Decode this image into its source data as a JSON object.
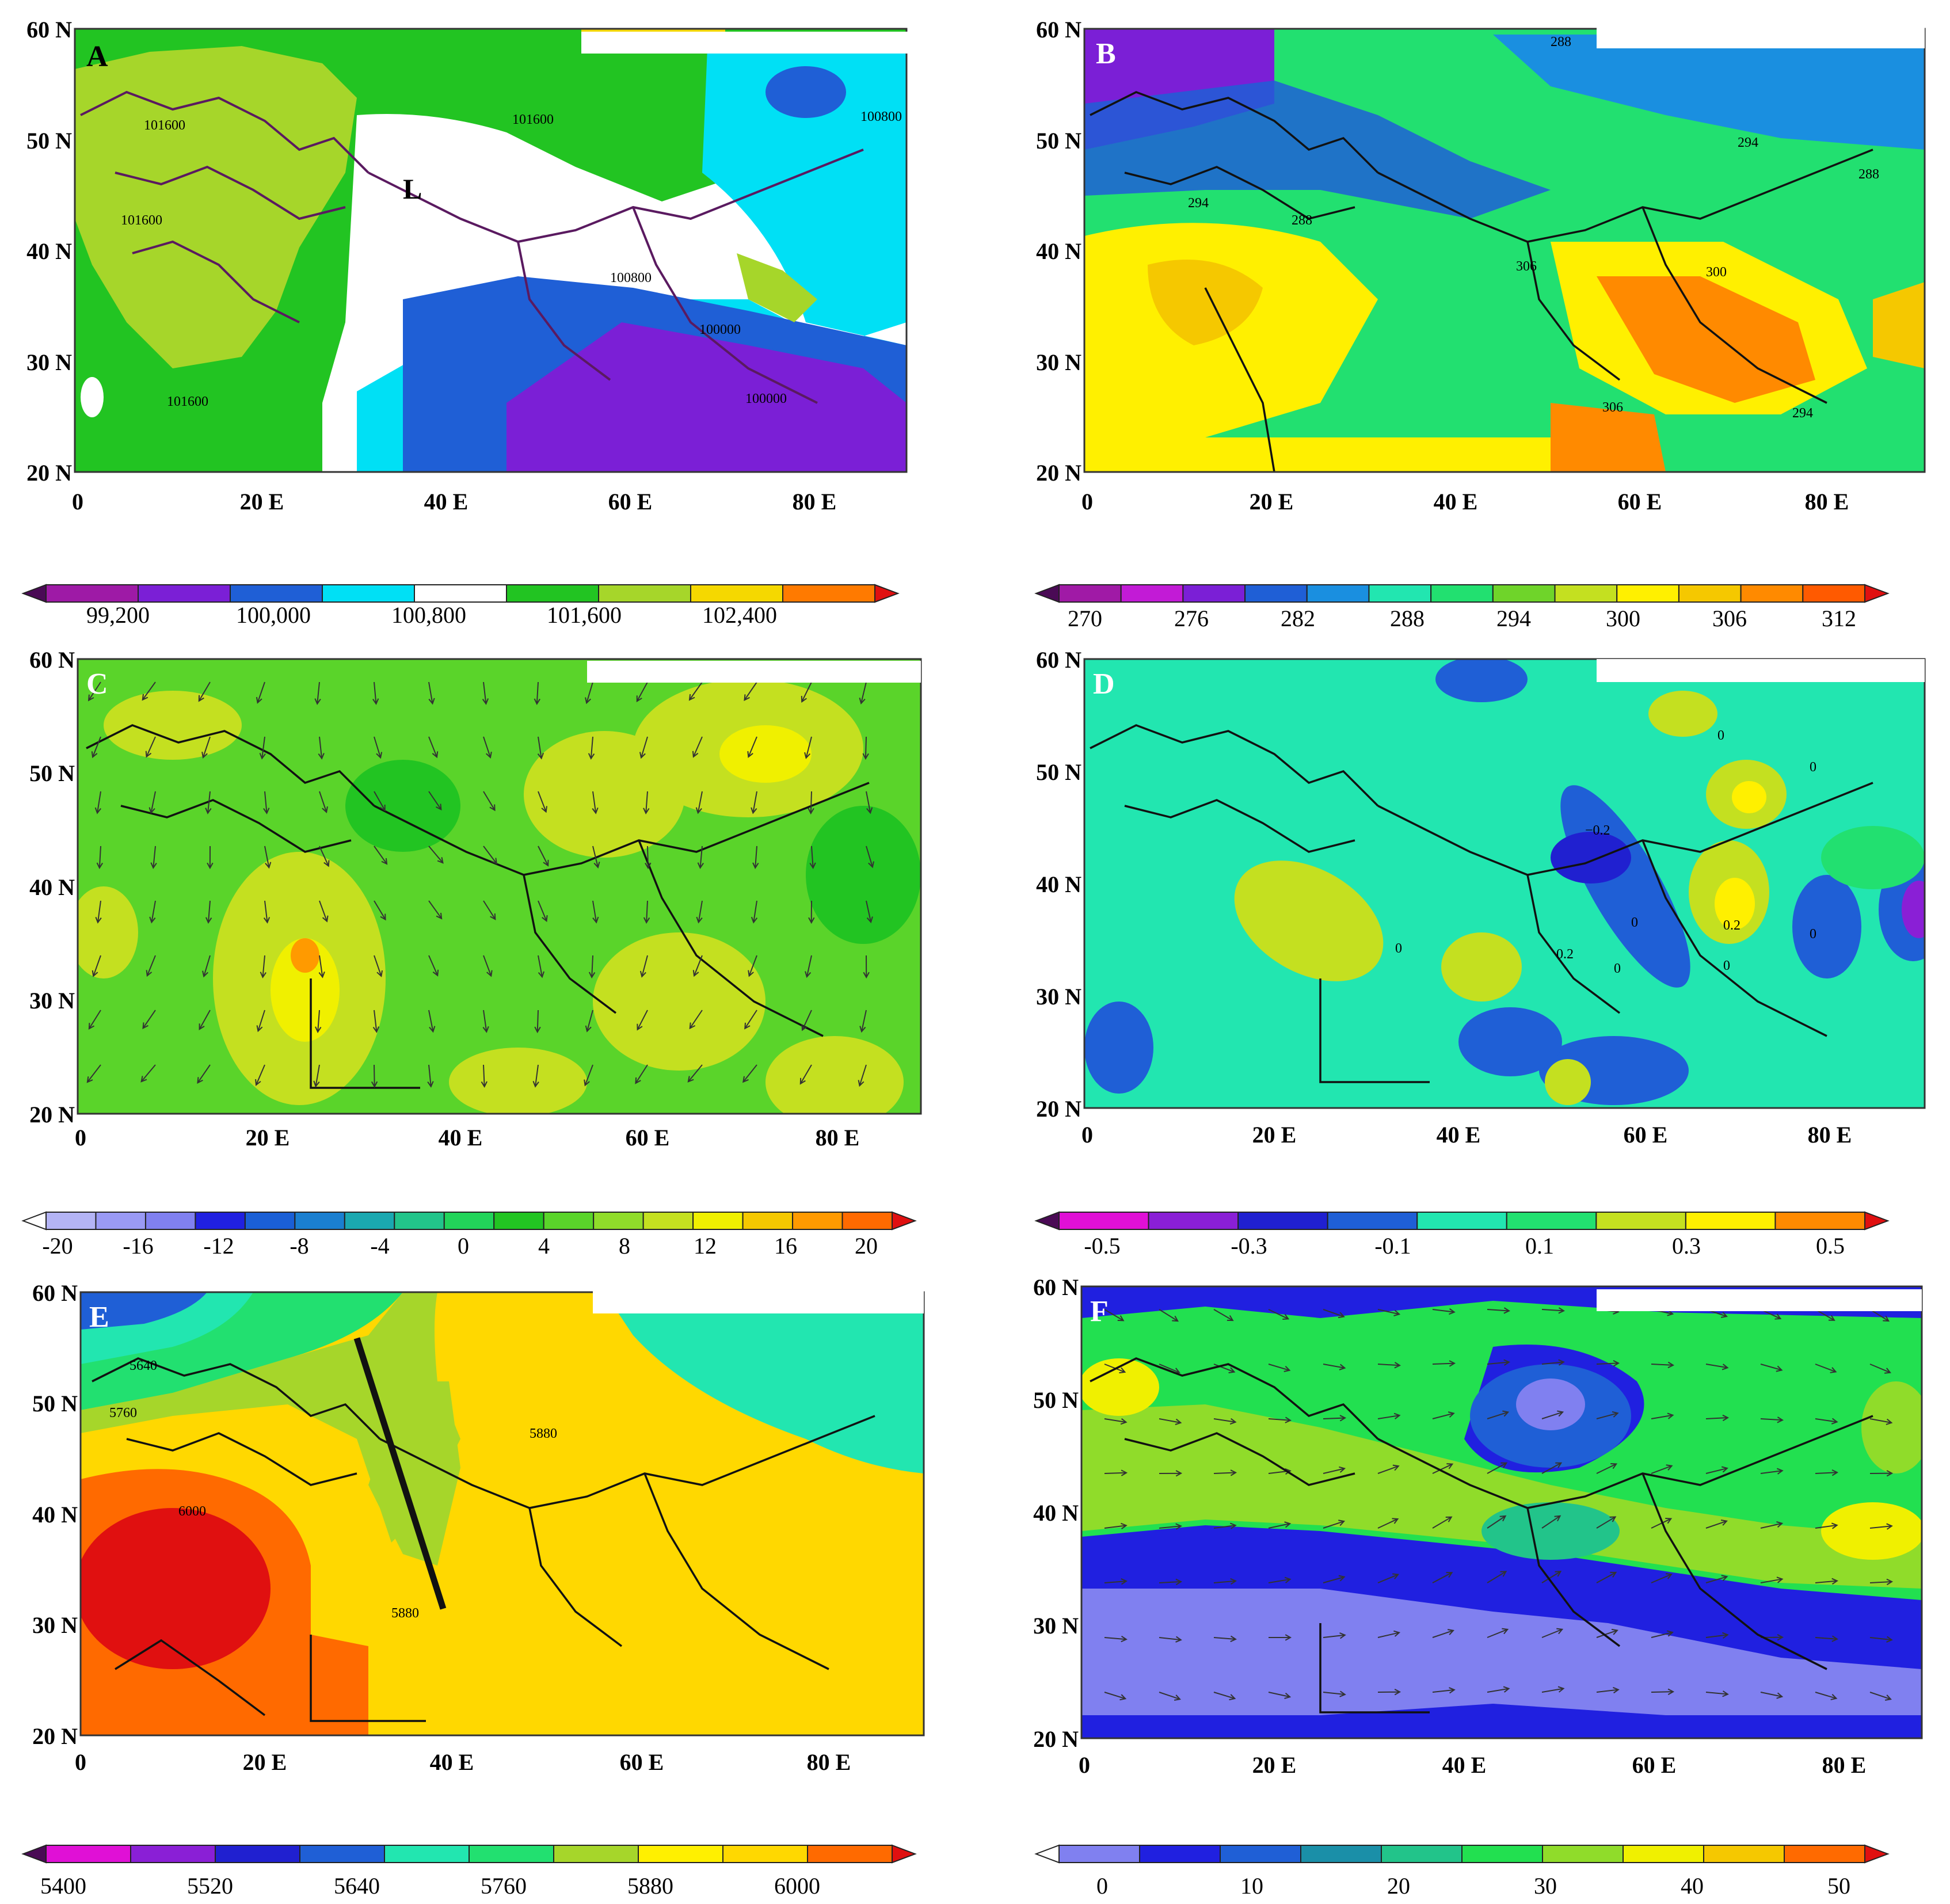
{
  "panels": [
    {
      "letter": "A",
      "lat_labels": [
        "60 N",
        "50 N",
        "40 N",
        "30 N",
        "20 N"
      ],
      "lon_labels": [
        "0",
        "20 E",
        "40 E",
        "60 E",
        "80 E"
      ],
      "contour_labels": [
        "101600",
        "101600",
        "101600",
        "101600",
        "100800",
        "100800",
        "100000",
        "100000"
      ],
      "low_marker": "L"
    },
    {
      "letter": "B",
      "lat_labels": [
        "60 N",
        "50 N",
        "40 N",
        "30 N",
        "20 N"
      ],
      "lon_labels": [
        "0",
        "20 E",
        "40 E",
        "60 E",
        "80 E"
      ],
      "contour_labels": [
        "288",
        "294",
        "294",
        "288",
        "294",
        "288",
        "306",
        "300",
        "306",
        "294"
      ]
    },
    {
      "letter": "C",
      "lat_labels": [
        "60 N",
        "50 N",
        "40 N",
        "30 N",
        "20 N"
      ],
      "lon_labels": [
        "0",
        "20 E",
        "40 E",
        "60 E",
        "80 E"
      ],
      "contour_labels": []
    },
    {
      "letter": "D",
      "lat_labels": [
        "60 N",
        "50 N",
        "40 N",
        "30 N",
        "20 N"
      ],
      "lon_labels": [
        "0",
        "20 E",
        "40 E",
        "60 E",
        "80 E"
      ],
      "contour_labels": [
        "0",
        "0",
        "−0.2",
        "0.2",
        "0",
        "0",
        "0",
        "0.2",
        "0",
        "0"
      ]
    },
    {
      "letter": "E",
      "lat_labels": [
        "60 N",
        "50 N",
        "40 N",
        "30 N",
        "20 N"
      ],
      "lon_labels": [
        "0",
        "20 E",
        "40 E",
        "60 E",
        "80 E"
      ],
      "contour_labels": [
        "5640",
        "5760",
        "6000",
        "5880",
        "5880"
      ]
    },
    {
      "letter": "F",
      "lat_labels": [
        "60 N",
        "50 N",
        "40 N",
        "30 N",
        "20 N"
      ],
      "lon_labels": [
        "0",
        "20 E",
        "40 E",
        "60 E",
        "80 E"
      ],
      "contour_labels": []
    }
  ],
  "colorbars": [
    {
      "id": "A",
      "labels": [
        "99,200",
        "100,000",
        "100,800",
        "101,600",
        "102,400"
      ],
      "colors": [
        "#4a0a55",
        "#9e1aa6",
        "#7b1fd6",
        "#1f5fd6",
        "#00e0f5",
        "#ffffff",
        "#22c422",
        "#a6d62a",
        "#f5d800",
        "#ff7a00",
        "#e01010"
      ]
    },
    {
      "id": "B",
      "labels": [
        "270",
        "276",
        "282",
        "288",
        "294",
        "300",
        "306",
        "312"
      ],
      "colors": [
        "#4a0a55",
        "#a01aa6",
        "#c21bd6",
        "#7b1fd6",
        "#1f5fd6",
        "#1a8fe0",
        "#22e6b0",
        "#22e070",
        "#6fd42a",
        "#c4e020",
        "#fff000",
        "#f5c800",
        "#ff8a00",
        "#ff5a00",
        "#e01010"
      ]
    },
    {
      "id": "C",
      "labels": [
        "-20",
        "-16",
        "-12",
        "-8",
        "-4",
        "0",
        "4",
        "8",
        "12",
        "16",
        "20"
      ],
      "colors": [
        "#ffffff",
        "#b4b4f5",
        "#9a9af5",
        "#8080f0",
        "#2020e0",
        "#1a5fd6",
        "#1a7fd0",
        "#1aa8b0",
        "#22c48a",
        "#22d45a",
        "#22c422",
        "#5ad42a",
        "#90dc2a",
        "#c4e020",
        "#f0f000",
        "#f5c800",
        "#ff9a00",
        "#ff6a00",
        "#e01010"
      ]
    },
    {
      "id": "D",
      "labels": [
        "-0.5",
        "-0.3",
        "-0.1",
        "0.1",
        "0.3",
        "0.5"
      ],
      "colors": [
        "#4a0a55",
        "#e010d6",
        "#8a1fd6",
        "#2020d0",
        "#1f5fd6",
        "#22e6b0",
        "#22e070",
        "#c4e020",
        "#fff000",
        "#ff8a00",
        "#e01010"
      ]
    },
    {
      "id": "E",
      "labels": [
        "5400",
        "5520",
        "5640",
        "5760",
        "5880",
        "6000"
      ],
      "colors": [
        "#4a0a55",
        "#e010d6",
        "#8a1fd6",
        "#2020d0",
        "#1f5fd6",
        "#22e6b0",
        "#22e070",
        "#a6d62a",
        "#fff000",
        "#ffd800",
        "#ff6a00",
        "#e01010"
      ]
    },
    {
      "id": "F",
      "labels": [
        "0",
        "10",
        "20",
        "30",
        "40",
        "50"
      ],
      "colors": [
        "#ffffff",
        "#8080f0",
        "#2020e0",
        "#1f5fd6",
        "#1a8fa8",
        "#22c48a",
        "#22e050",
        "#90dc2a",
        "#f0f000",
        "#f5c800",
        "#ff6a00",
        "#e01010"
      ]
    }
  ]
}
